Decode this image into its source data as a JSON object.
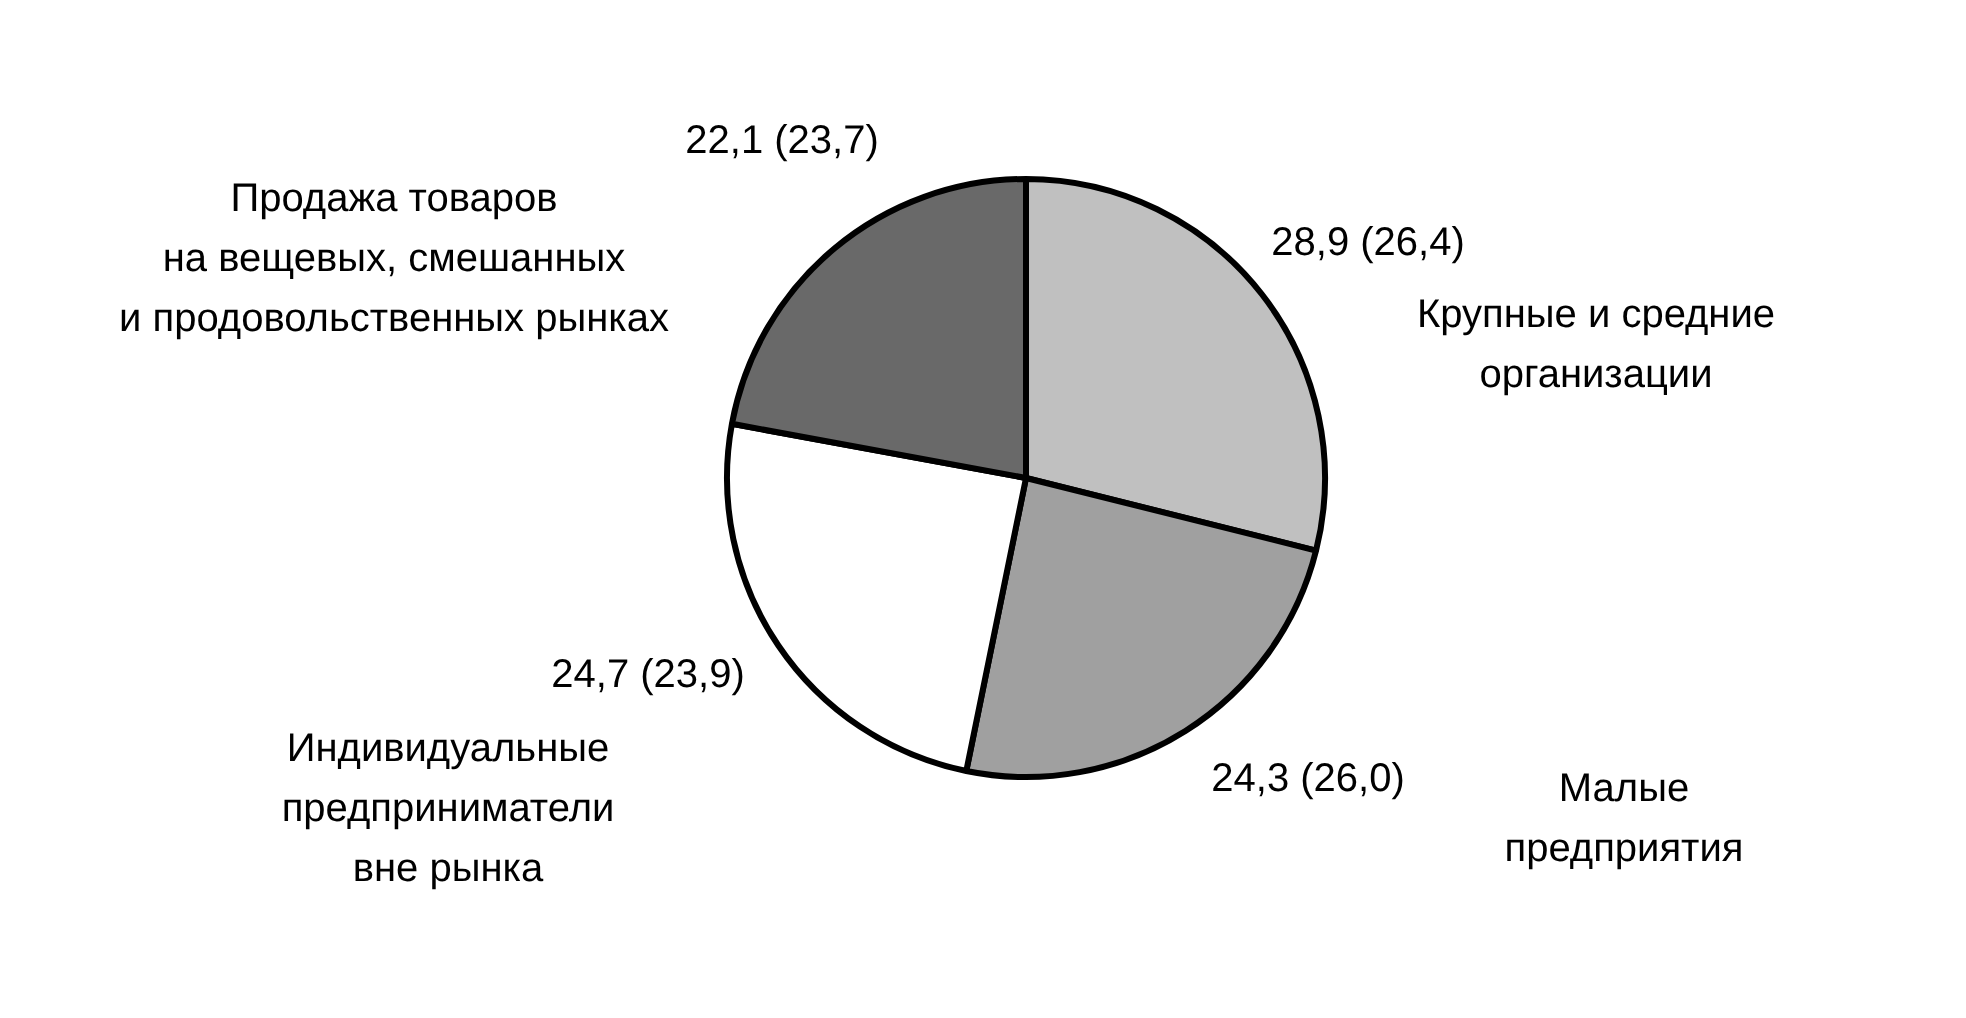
{
  "chart_data": {
    "type": "pie",
    "categories": [
      "Крупные и средние\nорганизации",
      "Малые\nпредприятия",
      "Индивидуальные\nпредприниматели\nвне рынка",
      "Продажа товаров\nна вещевых, смешанных\nи продовольственных рынках"
    ],
    "values": [
      28.9,
      24.3,
      24.7,
      22.1
    ],
    "value_labels": [
      "28,9 (26,4)",
      "24,3 (26,0)",
      "24,7 (23,9)",
      "22,1 (23,7)"
    ],
    "colors": [
      "#c0c0c0",
      "#a0a0a0",
      "#ffffff",
      "#696969"
    ],
    "legend": false
  }
}
